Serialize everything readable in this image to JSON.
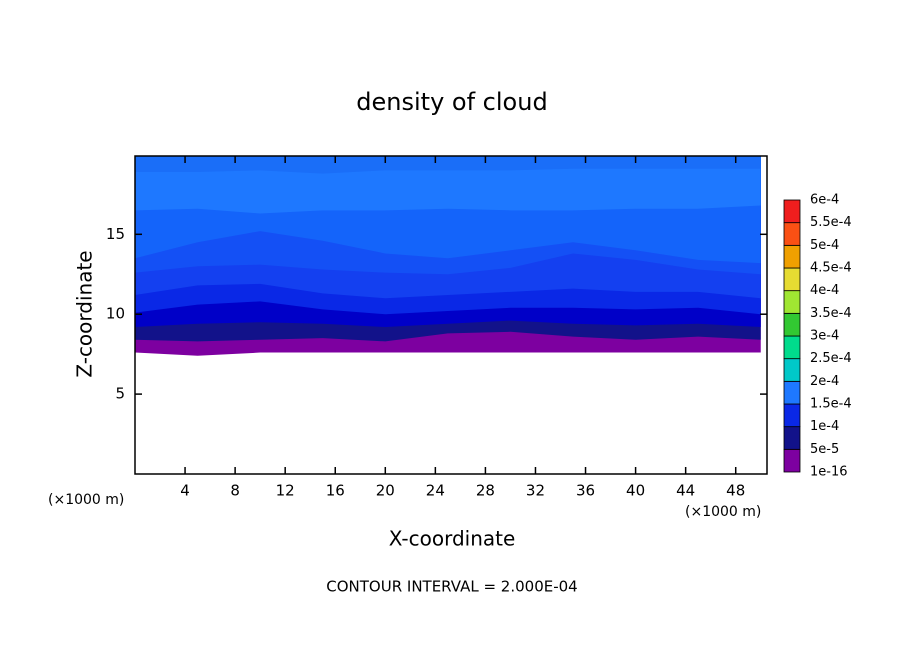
{
  "chart_data": {
    "type": "contour",
    "title": "density of cloud",
    "x_label": "X-coordinate",
    "y_label": "Z-coordinate",
    "x_unit": "(×1000 m)",
    "footer": "CONTOUR INTERVAL = 2.000E-04",
    "xlim": [
      0,
      50.5
    ],
    "ylim": [
      0,
      19.9
    ],
    "xticks": [
      4,
      8,
      12,
      16,
      20,
      24,
      28,
      32,
      36,
      40,
      44,
      48
    ],
    "yticks": [
      5,
      10,
      15
    ],
    "x": [
      0,
      5,
      10,
      15,
      20,
      25,
      30,
      35,
      40,
      45,
      50
    ],
    "bands": [
      {
        "color": "#7d00a0",
        "z": [
          7.6,
          7.4,
          7.6,
          7.6,
          7.6,
          7.6,
          7.6,
          7.6,
          7.6,
          7.6,
          7.6
        ]
      },
      {
        "color": "#12128a",
        "z": [
          8.4,
          8.3,
          8.4,
          8.5,
          8.3,
          8.8,
          8.9,
          8.6,
          8.4,
          8.6,
          8.4
        ]
      },
      {
        "color": "#0000c8",
        "z": [
          9.2,
          9.4,
          9.5,
          9.4,
          9.2,
          9.4,
          9.6,
          9.4,
          9.3,
          9.4,
          9.2
        ]
      },
      {
        "color": "#0a28e6",
        "z": [
          10.1,
          10.6,
          10.8,
          10.3,
          10.0,
          10.2,
          10.4,
          10.4,
          10.3,
          10.4,
          10.0
        ]
      },
      {
        "color": "#1440f0",
        "z": [
          11.2,
          11.8,
          11.9,
          11.3,
          11.0,
          11.2,
          11.4,
          11.6,
          11.4,
          11.4,
          11.0
        ]
      },
      {
        "color": "#1450f5",
        "z": [
          12.6,
          13.0,
          13.1,
          12.8,
          12.6,
          12.5,
          12.9,
          13.8,
          13.4,
          12.8,
          12.5
        ]
      },
      {
        "color": "#1464fa",
        "z": [
          13.5,
          14.5,
          15.2,
          14.6,
          13.8,
          13.5,
          14.0,
          14.5,
          14.0,
          13.4,
          13.2
        ]
      },
      {
        "color": "#1e78ff",
        "z": [
          16.5,
          16.6,
          16.3,
          16.5,
          16.5,
          16.6,
          16.5,
          16.5,
          16.6,
          16.6,
          16.8
        ]
      },
      {
        "color": "#1a6ef8",
        "z": [
          18.9,
          18.9,
          19.0,
          18.8,
          19.0,
          19.0,
          19.0,
          19.1,
          19.1,
          19.1,
          19.1
        ]
      }
    ],
    "colorbar": {
      "levels": [
        {
          "value": 1e-16,
          "label": "1e-16"
        },
        {
          "value": 5e-05,
          "label": "5e-5"
        },
        {
          "value": 0.0001,
          "label": "1e-4"
        },
        {
          "value": 0.00015,
          "label": "1.5e-4"
        },
        {
          "value": 0.0002,
          "label": "2e-4"
        },
        {
          "value": 0.00025,
          "label": "2.5e-4"
        },
        {
          "value": 0.0003,
          "label": "3e-4"
        },
        {
          "value": 0.00035,
          "label": "3.5e-4"
        },
        {
          "value": 0.0004,
          "label": "4e-4"
        },
        {
          "value": 0.00045,
          "label": "4.5e-4"
        },
        {
          "value": 0.0005,
          "label": "5e-4"
        },
        {
          "value": 0.00055,
          "label": "5.5e-4"
        },
        {
          "value": 0.0006,
          "label": "6e-4"
        }
      ],
      "colors": [
        "#7d00a0",
        "#12128a",
        "#0a28e6",
        "#1e78ff",
        "#00c8c8",
        "#00dc8c",
        "#32c832",
        "#a0e632",
        "#e6dc32",
        "#f0a000",
        "#fa5014",
        "#f01e1e",
        "#ff8c8c"
      ]
    }
  }
}
